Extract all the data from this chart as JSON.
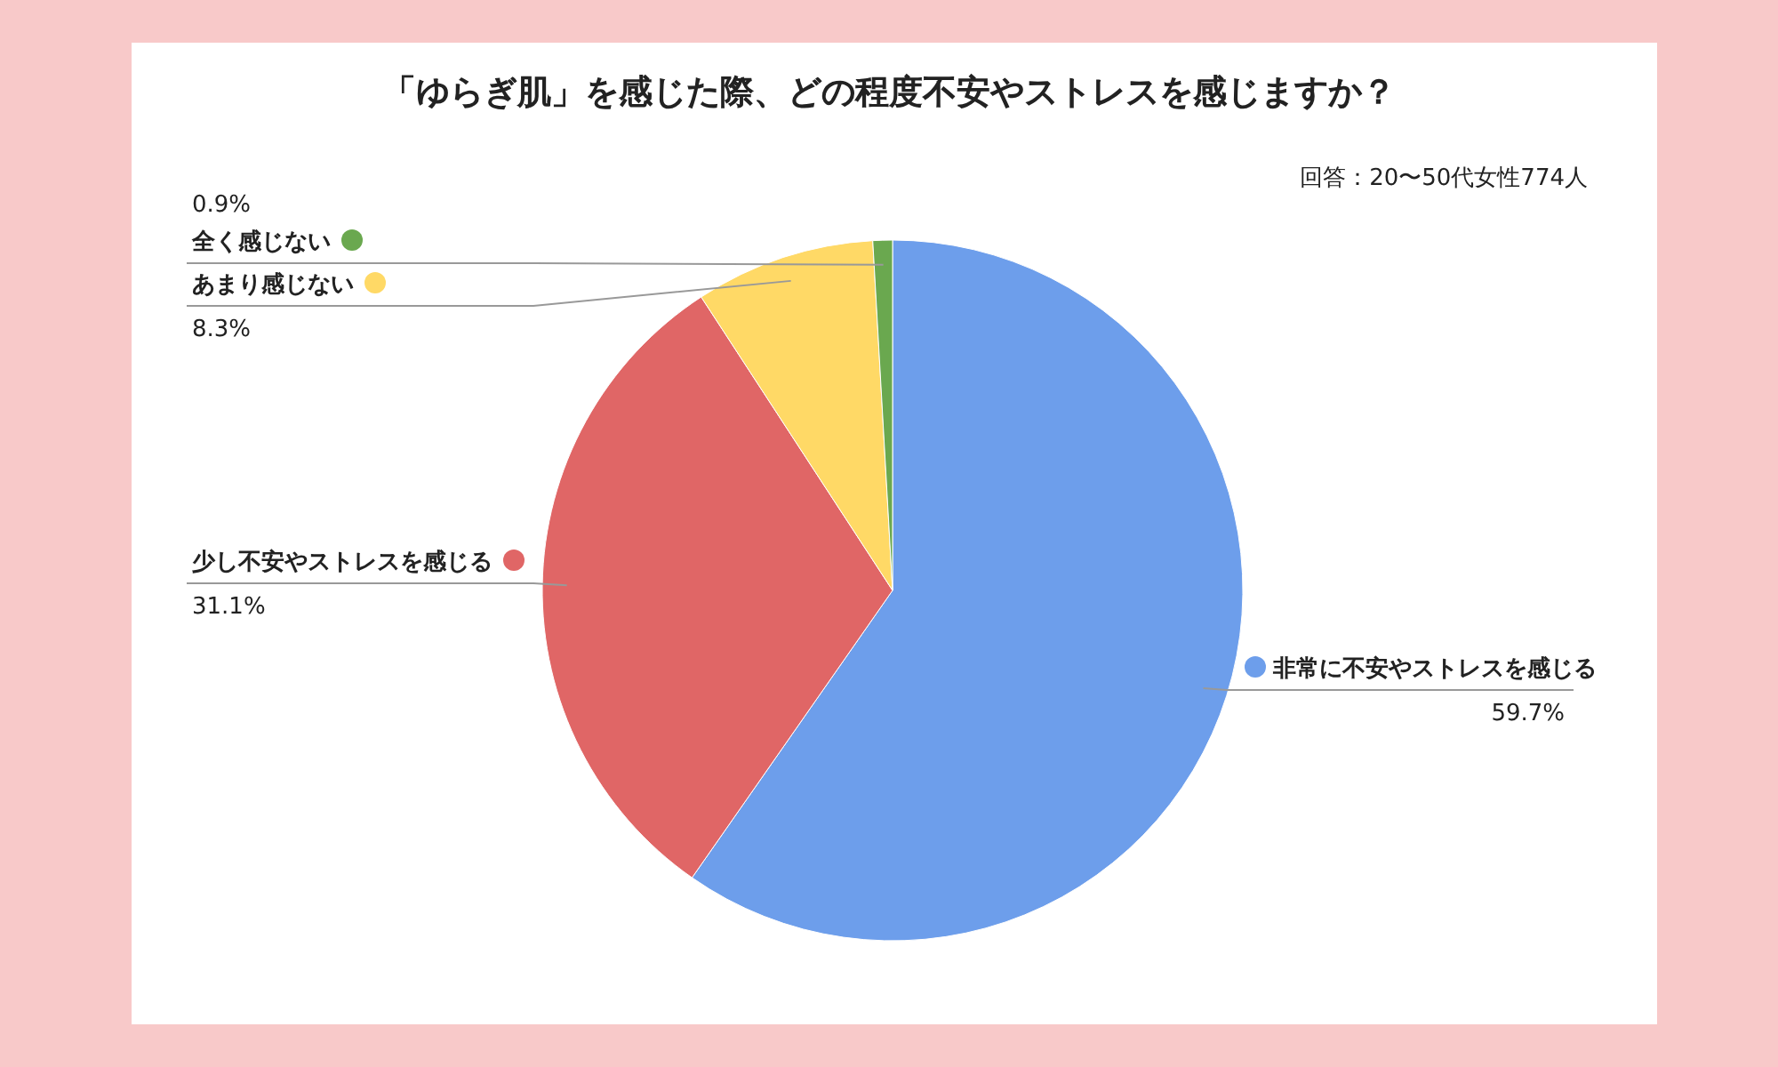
{
  "chart_data": {
    "type": "pie",
    "title": "「ゆらぎ肌」を感じた際、どの程度不安やストレスを感じますか？",
    "categories": [
      "非常に不安やストレスを感じる",
      "少し不安やストレスを感じる",
      "あまり感じない",
      "全く感じない"
    ],
    "values": [
      59.7,
      31.1,
      8.3,
      0.9
    ],
    "value_labels": [
      "59.7%",
      "31.1%",
      "8.3%",
      "0.9%"
    ],
    "legend": "left",
    "colors": [
      "#6d9eeb",
      "#e06666",
      "#ffd966",
      "#6aa84f"
    ],
    "annotations": [
      "回答：20〜50代女性774人"
    ]
  }
}
